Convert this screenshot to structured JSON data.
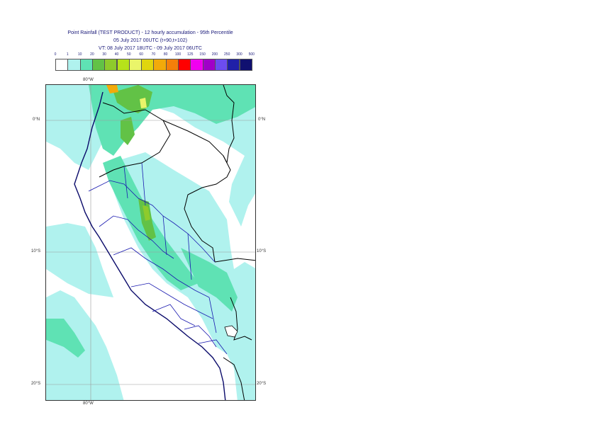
{
  "header": {
    "title_line1": "Point Rainfall (TEST PRODUCT) - 12 hourly accumulation - 95th Percentile",
    "title_line2": "05 July 2017 00UTC (t+90,t+102)",
    "title_line3": "VT: 08 July 2017 18UTC - 09 July 2017 06UTC"
  },
  "legend": {
    "bins": [
      {
        "label": "0",
        "color": "#ffffff"
      },
      {
        "label": "1",
        "color": "#b0f2ee"
      },
      {
        "label": "10",
        "color": "#5fe2b4"
      },
      {
        "label": "20",
        "color": "#62c246"
      },
      {
        "label": "30",
        "color": "#8ecb2c"
      },
      {
        "label": "40",
        "color": "#b6e21a"
      },
      {
        "label": "50",
        "color": "#eaf56a"
      },
      {
        "label": "60",
        "color": "#e0d60e"
      },
      {
        "label": "70",
        "color": "#f2aa0a"
      },
      {
        "label": "80",
        "color": "#f57f0a"
      },
      {
        "label": "100",
        "color": "#ff0000"
      },
      {
        "label": "125",
        "color": "#f000f0"
      },
      {
        "label": "150",
        "color": "#a000c8"
      },
      {
        "label": "200",
        "color": "#6c4cf0"
      },
      {
        "label": "250",
        "color": "#2020a8"
      },
      {
        "label": "300",
        "color": "#101070"
      },
      {
        "label": "500",
        "color": null
      }
    ]
  },
  "map": {
    "lon_label_top": "80°W",
    "lon_label_bottom": "80°W",
    "lat_labels": [
      "0°N",
      "10°S",
      "20°S"
    ],
    "colors": {
      "ocean_light": "#b0f2ee",
      "sea_teal": "#5fe2b4",
      "green": "#62c246",
      "lime": "#8ecb2c",
      "yellow": "#eaf56a",
      "orange": "#f2aa0a",
      "country_border": "#000000",
      "region_border": "#1a1ab0",
      "coast": "#0a0a6a"
    }
  }
}
